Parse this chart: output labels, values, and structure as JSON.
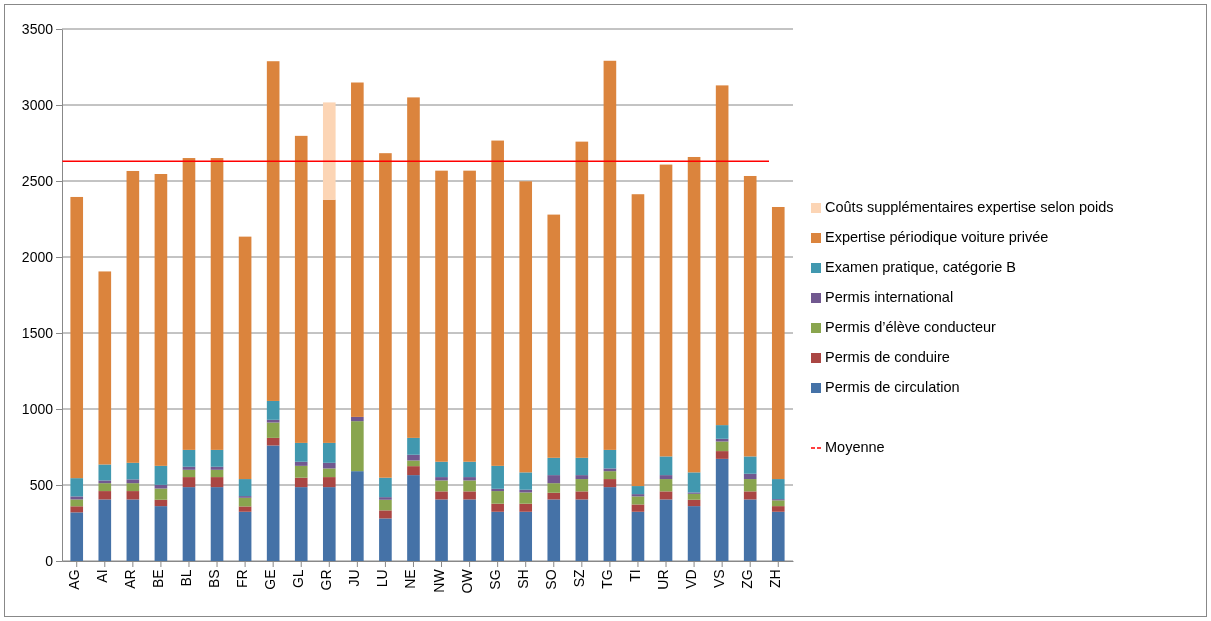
{
  "chart_data": {
    "type": "bar",
    "stacked": true,
    "categories": [
      "AG",
      "AI",
      "AR",
      "BE",
      "BL",
      "BS",
      "FR",
      "GE",
      "GL",
      "GR",
      "JU",
      "LU",
      "NE",
      "NW",
      "OW",
      "SG",
      "SH",
      "SO",
      "SZ",
      "TG",
      "TI",
      "UR",
      "VD",
      "VS",
      "ZG",
      "ZH"
    ],
    "series": [
      {
        "name": "Permis de circulation",
        "color": "#4572a7",
        "values": [
          320,
          405,
          405,
          361,
          486,
          486,
          324,
          760,
          486,
          486,
          591,
          280,
          565,
          405,
          405,
          324,
          324,
          405,
          405,
          486,
          324,
          405,
          361,
          672,
          405,
          324
        ]
      },
      {
        "name": "Permis de conduire",
        "color": "#aa4643",
        "values": [
          40,
          55,
          55,
          42,
          66,
          66,
          35,
          50,
          62,
          66,
          0,
          53,
          59,
          53,
          53,
          53,
          53,
          44,
          53,
          53,
          48,
          53,
          42,
          51,
          53,
          37
        ]
      },
      {
        "name": "Permis d’élève conducteur",
        "color": "#89a54e",
        "values": [
          45,
          52,
          52,
          74,
          48,
          48,
          57,
          101,
          78,
          57,
          329,
          70,
          37,
          72,
          72,
          83,
          74,
          63,
          81,
          52,
          53,
          81,
          39,
          63,
          81,
          38
        ]
      },
      {
        "name": "Permis international",
        "color": "#71588f",
        "values": [
          20,
          18,
          25,
          24,
          20,
          20,
          11,
          18,
          27,
          37,
          28,
          17,
          38,
          22,
          22,
          15,
          18,
          53,
          26,
          18,
          15,
          26,
          9,
          18,
          35,
          8
        ]
      },
      {
        "name": "Examen pratique, catégorie B",
        "color": "#4198af",
        "values": [
          120,
          105,
          109,
          125,
          111,
          111,
          112,
          124,
          124,
          131,
          0,
          128,
          111,
          101,
          101,
          151,
          114,
          114,
          114,
          122,
          53,
          123,
          132,
          90,
          114,
          132
        ]
      },
      {
        "name": "Expertise périodique voiture privée",
        "color": "#db843d",
        "values": [
          1850,
          1270,
          1920,
          1920,
          1920,
          1920,
          1595,
          2235,
          2020,
          1600,
          2200,
          2135,
          2240,
          1915,
          1915,
          2140,
          1915,
          1600,
          2080,
          2560,
          1920,
          1920,
          2075,
          2235,
          1845,
          1790
        ]
      },
      {
        "name": "Coûts supplémentaires expertise selon poids",
        "color": "#fcd5b5",
        "values": [
          0,
          0,
          0,
          0,
          0,
          0,
          0,
          0,
          0,
          640,
          0,
          0,
          0,
          0,
          0,
          0,
          0,
          0,
          0,
          0,
          0,
          0,
          0,
          0,
          0,
          0
        ]
      }
    ],
    "ylim": [
      0,
      3500
    ],
    "yticks": [
      0,
      500,
      1000,
      1500,
      2000,
      2500,
      3000,
      3500
    ],
    "grid": "y",
    "legend": "right",
    "ref_lines": [
      {
        "axis": "y",
        "value": 2630,
        "label": "Moyenne",
        "color": "#ff0000"
      }
    ]
  }
}
